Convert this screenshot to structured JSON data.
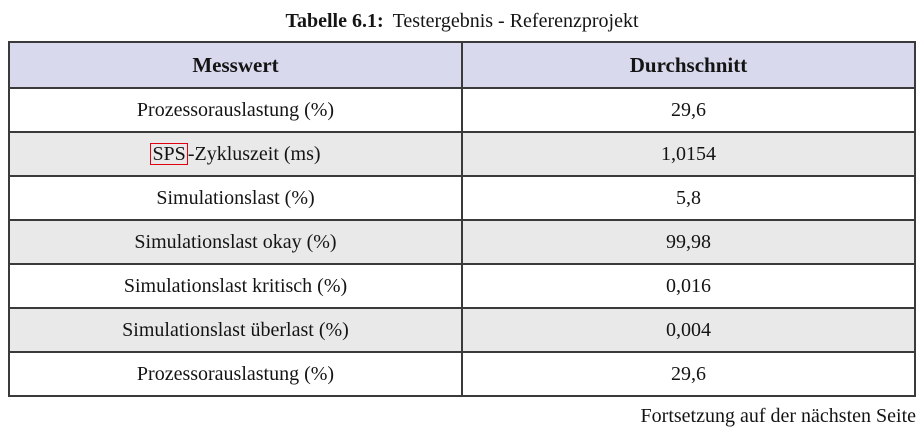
{
  "caption": {
    "label": "Tabelle 6.1:",
    "title": "Testergebnis - Referenzprojekt"
  },
  "table": {
    "columns": [
      "Messwert",
      "Durchschnitt"
    ],
    "rows": [
      {
        "label": "Prozessorauslastung (%)",
        "value": "29,6"
      },
      {
        "boxed": "SPS",
        "label": "-Zykluszeit (ms)",
        "value": "1,0154"
      },
      {
        "label": "Simulationslast (%)",
        "value": "5,8"
      },
      {
        "label": "Simulationslast okay (%)",
        "value": "99,98"
      },
      {
        "label": "Simulationslast kritisch (%)",
        "value": "0,016"
      },
      {
        "label": "Simulationslast überlast (%)",
        "value": "0,004"
      },
      {
        "label": "Prozessorauslastung (%)",
        "value": "29,6"
      }
    ]
  },
  "footer": {
    "continuation": "Fortsetzung auf der nächsten Seite"
  },
  "colors": {
    "header_bg": "#d9d9ee",
    "alt_row_bg": "#e9e9e9",
    "border": "#3a3a3a",
    "acronym_box_border": "#e3000f"
  }
}
